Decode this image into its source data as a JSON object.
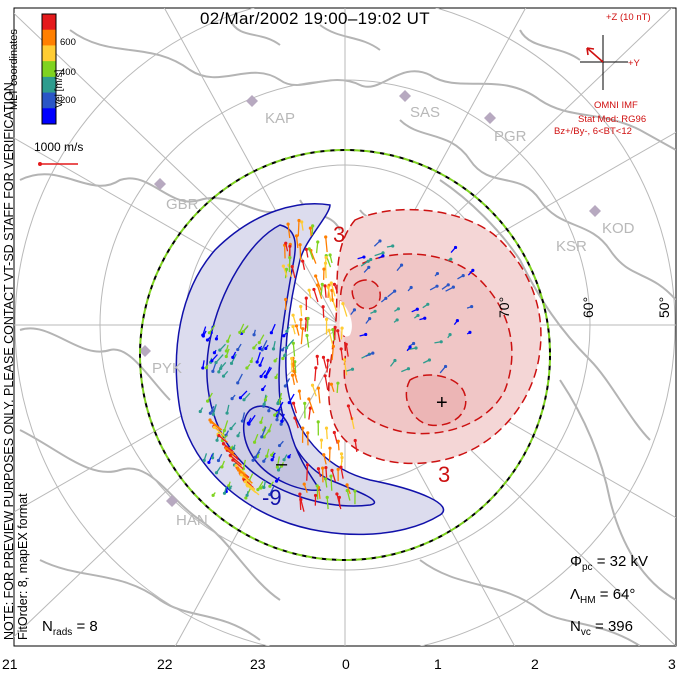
{
  "title": "02/Mar/2002 19:00–19:02 UT",
  "side_note": {
    "line1": "NOTE: FOR PREVIEW PURPOSES ONLY. PLEASE CONTACT VT-SD STAFF FOR VERIFICATION.",
    "line2": "FitOrder: 8, mapEX format"
  },
  "coords_label": "MLT coordinates",
  "colorbar": {
    "label": "Vel [m/s]",
    "ticks": [
      "600",
      "400",
      "200"
    ],
    "colors": [
      "#e41a1c",
      "#ff7f00",
      "#ffcc33",
      "#7fd320",
      "#2e9c8e",
      "#2a56c6",
      "#0000ff"
    ]
  },
  "scale_vector": {
    "label": "1000 m/s",
    "color": "#e41a1c"
  },
  "imf": {
    "scale_label": "+Z (10 nT)",
    "y_label": "+Y",
    "source": "OMNI IMF",
    "stat_mod": "Stat Mod: RG96",
    "condition": "Bz+/By-, 6<BT<12",
    "color": "#d01010"
  },
  "stations": [
    "KAP",
    "SAS",
    "PGR",
    "GBR",
    "KOD",
    "KSR",
    "PYK",
    "HAN"
  ],
  "latitude_labels": [
    "70°",
    "60°",
    "50°"
  ],
  "contour_labels": {
    "positive": "3",
    "negative": "-9",
    "min_marker": "–",
    "max_marker": "+"
  },
  "stats": {
    "phi_pc": "Φpc = 32 kV",
    "phi_sym": "Φ",
    "phi_sub": "pc",
    "phi_val": "= 32 kV",
    "lambda_sym": "Λ",
    "lambda_sub": "HM",
    "lambda_val": "= 64°",
    "nvc_sym": "N",
    "nvc_sub": "vc",
    "nvc_val": "= 396",
    "nrads_sym": "N",
    "nrads_sub": "rads",
    "nrads_val": "= 8"
  },
  "mlt_ticks": [
    "21",
    "22",
    "23",
    "0",
    "1",
    "2",
    "3"
  ],
  "colors": {
    "positive_cell_fill": "#f4d6d6",
    "negative_cell_fill": "#dcdcee",
    "positive_contour": "#cc1111",
    "negative_contour": "#1111aa",
    "coastline": "#b4b4b4",
    "grid": "#b9b9b9",
    "hmb": "#7fd320"
  }
}
